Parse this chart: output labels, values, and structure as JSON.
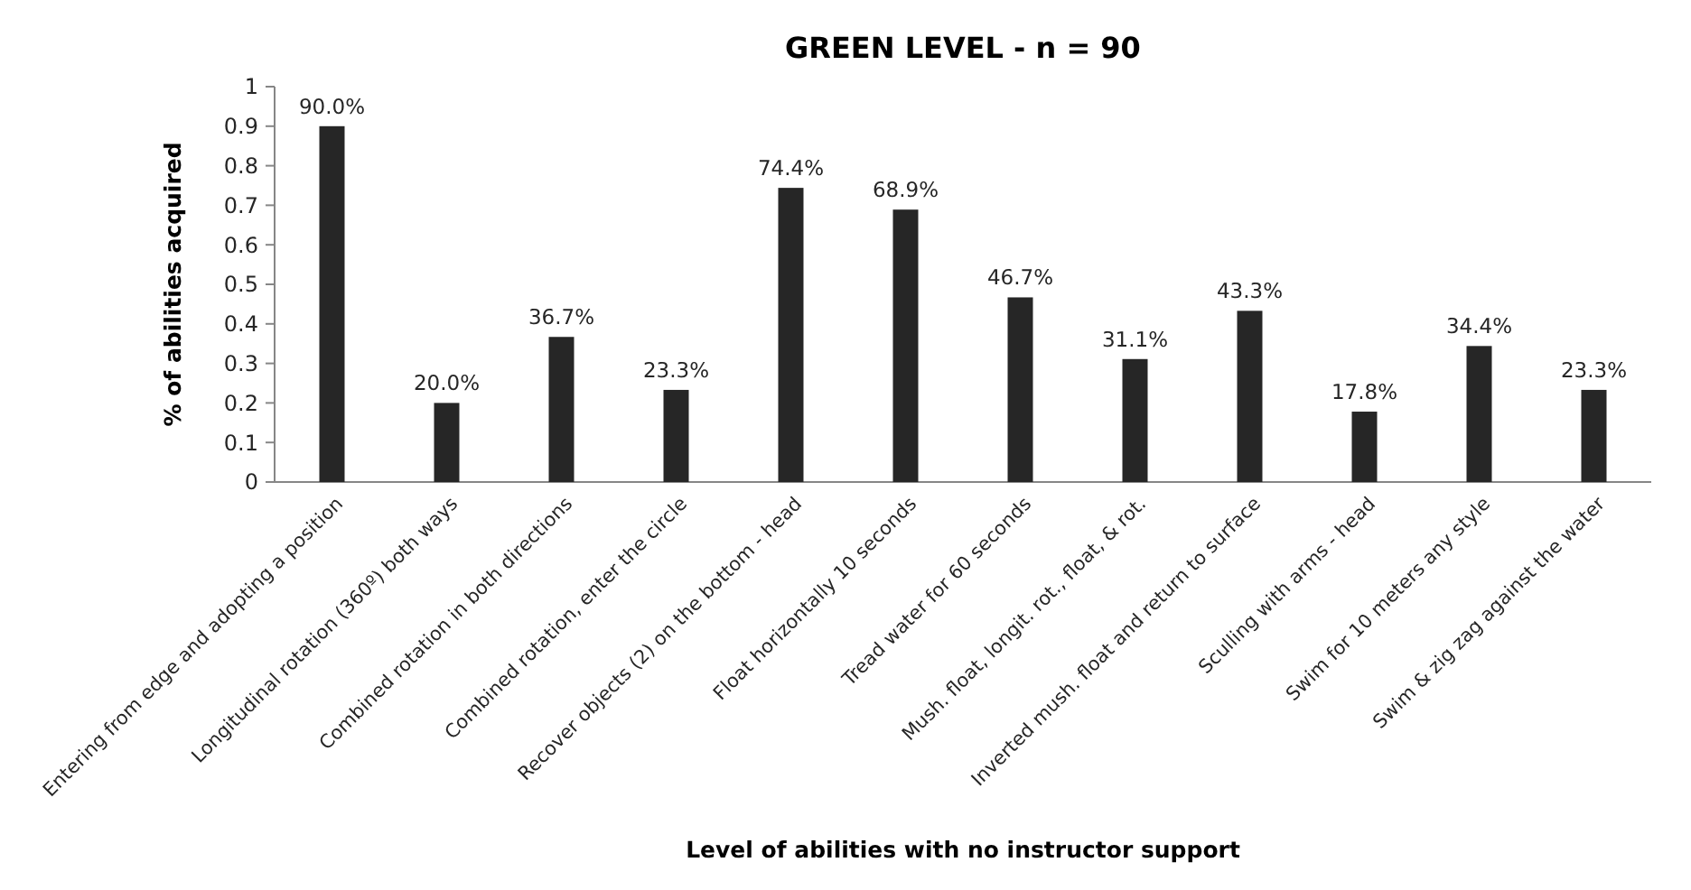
{
  "chart_data": {
    "type": "bar",
    "title": "GREEN LEVEL - n = 90",
    "xlabel": "Level of abilities with no instructor support",
    "ylabel": "% of abilities acquired",
    "categories": [
      "Entering from edge and adopting a position",
      "Longitudinal rotation (360º) both ways",
      "Combined rotation in both directions",
      "Combined rotation, enter the circle",
      "Recover objects (2) on the bottom - head",
      "Float horizontally 10 seconds",
      "Tread water for 60 seconds",
      "Mush. float, longit. rot., float, & rot.",
      "Inverted mush. float and return to surface",
      "Sculling with arms - head",
      "Swim for 10 meters any style",
      "Swim & zig zag against the water"
    ],
    "values": [
      0.9,
      0.2,
      0.367,
      0.233,
      0.744,
      0.689,
      0.467,
      0.311,
      0.433,
      0.178,
      0.344,
      0.233
    ],
    "value_labels": [
      "90.0%",
      "20.0%",
      "36.7%",
      "23.3%",
      "74.4%",
      "68.9%",
      "46.7%",
      "31.1%",
      "43.3%",
      "17.8%",
      "34.4%",
      "23.3%"
    ],
    "color": "#262626",
    "ylim": [
      0,
      1
    ],
    "yticks": [
      0,
      0.1,
      0.2,
      0.3,
      0.4,
      0.5,
      0.6,
      0.7,
      0.8,
      0.9,
      1
    ],
    "grid": false
  }
}
